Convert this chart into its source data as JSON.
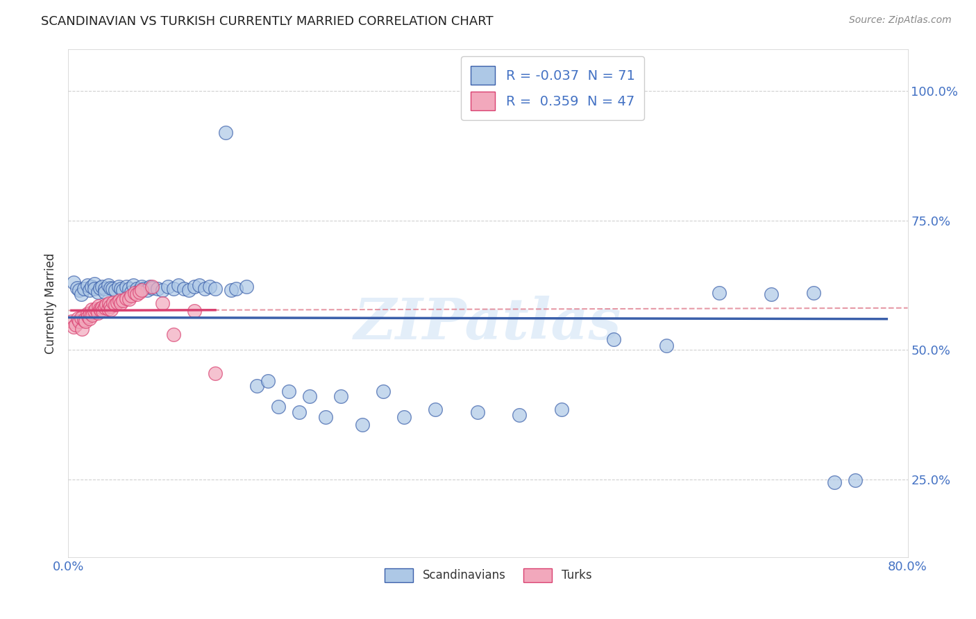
{
  "title": "SCANDINAVIAN VS TURKISH CURRENTLY MARRIED CORRELATION CHART",
  "source": "Source: ZipAtlas.com",
  "ylabel": "Currently Married",
  "xlim": [
    0.0,
    0.8
  ],
  "ylim": [
    0.1,
    1.08
  ],
  "xtick_positions": [
    0.0,
    0.8
  ],
  "xtick_labels": [
    "0.0%",
    "80.0%"
  ],
  "ytick_positions": [
    0.25,
    0.5,
    0.75,
    1.0
  ],
  "ytick_labels": [
    "25.0%",
    "50.0%",
    "75.0%",
    "100.0%"
  ],
  "legend_r_scand": "-0.037",
  "legend_n_scand": "71",
  "legend_r_turk": "0.359",
  "legend_n_turk": "47",
  "scand_color": "#adc8e6",
  "turk_color": "#f2a8bc",
  "trendline_scand_color": "#3a5faa",
  "trendline_turk_color": "#d94070",
  "dashed_line_color": "#e08090",
  "watermark": "ZIPatlas",
  "tick_color": "#4472c4",
  "grid_color": "#d0d0d0",
  "scandinavians_x": [
    0.005,
    0.008,
    0.01,
    0.012,
    0.015,
    0.018,
    0.02,
    0.022,
    0.025,
    0.025,
    0.028,
    0.03,
    0.032,
    0.035,
    0.035,
    0.038,
    0.04,
    0.042,
    0.045,
    0.048,
    0.05,
    0.052,
    0.055,
    0.058,
    0.06,
    0.062,
    0.065,
    0.068,
    0.07,
    0.072,
    0.075,
    0.078,
    0.08,
    0.085,
    0.09,
    0.095,
    0.1,
    0.105,
    0.11,
    0.115,
    0.12,
    0.125,
    0.13,
    0.135,
    0.14,
    0.15,
    0.155,
    0.16,
    0.17,
    0.18,
    0.19,
    0.2,
    0.21,
    0.22,
    0.23,
    0.245,
    0.26,
    0.28,
    0.3,
    0.32,
    0.35,
    0.39,
    0.43,
    0.47,
    0.52,
    0.57,
    0.62,
    0.67,
    0.71,
    0.73,
    0.75
  ],
  "scandinavians_y": [
    0.63,
    0.62,
    0.615,
    0.608,
    0.618,
    0.625,
    0.615,
    0.622,
    0.628,
    0.618,
    0.612,
    0.62,
    0.622,
    0.618,
    0.612,
    0.625,
    0.62,
    0.618,
    0.615,
    0.622,
    0.618,
    0.615,
    0.622,
    0.618,
    0.612,
    0.625,
    0.618,
    0.615,
    0.622,
    0.618,
    0.615,
    0.622,
    0.62,
    0.618,
    0.615,
    0.622,
    0.618,
    0.625,
    0.618,
    0.615,
    0.622,
    0.625,
    0.618,
    0.622,
    0.618,
    0.92,
    0.615,
    0.618,
    0.622,
    0.43,
    0.44,
    0.39,
    0.42,
    0.38,
    0.41,
    0.37,
    0.41,
    0.355,
    0.42,
    0.37,
    0.385,
    0.38,
    0.375,
    0.385,
    0.52,
    0.508,
    0.61,
    0.608,
    0.61,
    0.245,
    0.248
  ],
  "turks_x": [
    0.003,
    0.005,
    0.007,
    0.009,
    0.01,
    0.012,
    0.013,
    0.015,
    0.016,
    0.018,
    0.019,
    0.02,
    0.021,
    0.022,
    0.023,
    0.025,
    0.026,
    0.028,
    0.029,
    0.03,
    0.031,
    0.032,
    0.033,
    0.035,
    0.036,
    0.038,
    0.039,
    0.04,
    0.041,
    0.043,
    0.045,
    0.047,
    0.049,
    0.05,
    0.052,
    0.055,
    0.058,
    0.06,
    0.063,
    0.065,
    0.068,
    0.07,
    0.08,
    0.09,
    0.1,
    0.12,
    0.14
  ],
  "turks_y": [
    0.555,
    0.545,
    0.548,
    0.56,
    0.555,
    0.562,
    0.54,
    0.558,
    0.555,
    0.57,
    0.565,
    0.56,
    0.572,
    0.578,
    0.568,
    0.575,
    0.58,
    0.572,
    0.585,
    0.58,
    0.577,
    0.582,
    0.575,
    0.582,
    0.588,
    0.58,
    0.59,
    0.585,
    0.578,
    0.592,
    0.588,
    0.592,
    0.595,
    0.59,
    0.595,
    0.6,
    0.598,
    0.605,
    0.61,
    0.608,
    0.612,
    0.615,
    0.622,
    0.59,
    0.53,
    0.575,
    0.455
  ]
}
